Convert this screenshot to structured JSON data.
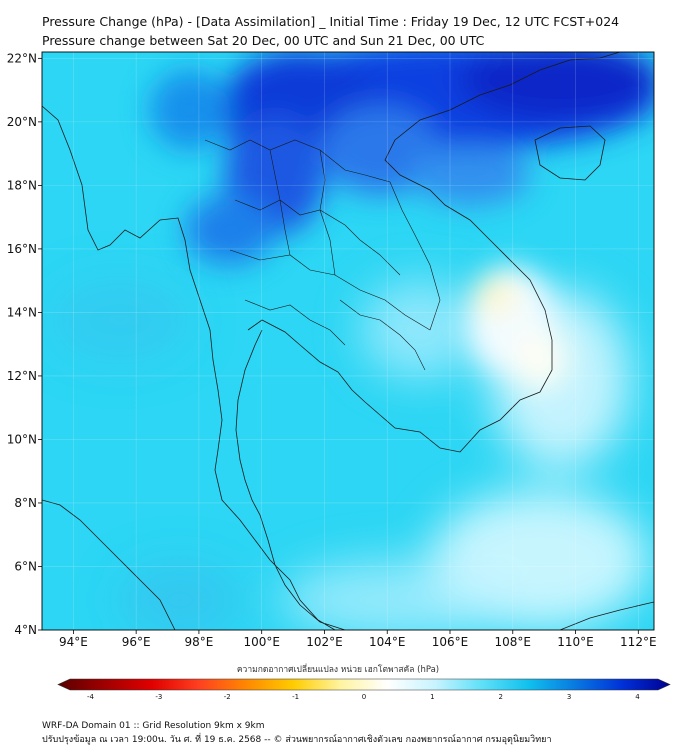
{
  "title": {
    "line1": "Pressure Change (hPa) - [Data Assimilation] _ Initial Time : Friday 19 Dec, 12 UTC FCST+024",
    "line2": "Pressure change between Sat 20 Dec, 00 UTC and Sun 21 Dec, 00 UTC"
  },
  "map": {
    "lat_labels": [
      "22°N",
      "20°N",
      "18°N",
      "16°N",
      "14°N",
      "12°N",
      "10°N",
      "8°N",
      "6°N",
      "4°N"
    ],
    "lat_values": [
      22,
      20,
      18,
      16,
      14,
      12,
      10,
      8,
      6,
      4
    ],
    "lon_labels": [
      "94°E",
      "96°E",
      "98°E",
      "100°E",
      "102°E",
      "104°E",
      "106°E",
      "108°E",
      "110°E",
      "112°E"
    ],
    "lon_values": [
      94,
      96,
      98,
      100,
      102,
      104,
      106,
      108,
      110,
      112
    ],
    "lat_range": [
      4,
      22.2
    ],
    "lon_range": [
      93,
      112.5
    ],
    "background_color": "#2cd6f4",
    "coastline_color": "#1a1a1a"
  },
  "colorbar": {
    "caption": "ความกดอากาศเปลี่ยนแปลง หน่วย เฮกโตพาสคัล (hPa)",
    "tick_labels": [
      "-4",
      "-3",
      "-2",
      "-1",
      "0",
      "1",
      "2",
      "3",
      "4"
    ],
    "tick_values": [
      -4,
      -3,
      -2,
      -1,
      0,
      1,
      2,
      3,
      4
    ],
    "range": [
      -4.3,
      4.3
    ],
    "colors": [
      "#5a0000",
      "#a00000",
      "#e00000",
      "#ff4020",
      "#ff8800",
      "#ffcc00",
      "#fff4a0",
      "#ffffff",
      "#c8f4ff",
      "#60e0f8",
      "#10c0ee",
      "#0878e0",
      "#0030d8",
      "#000090"
    ]
  },
  "footer": {
    "line1": "WRF-DA Domain 01 :: Grid Resolution 9km x 9km",
    "line2": "ปรับปรุงข้อมูล ณ เวลา 19:00น. วัน ศ. ที่ 19 ธ.ค. 2568 -- © ส่วนพยากรณ์อากาศเชิงตัวเลข กองพยากรณ์อากาศ กรมอุตุนิยมวิทยา"
  }
}
